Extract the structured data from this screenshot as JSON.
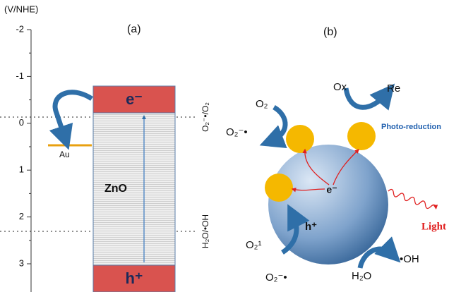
{
  "axis": {
    "unit": "(V/NHE)",
    "ticks": [
      "-2",
      "-1",
      "0",
      "1",
      "2",
      "3"
    ]
  },
  "panel_a": {
    "label": "(a)",
    "cb": "e⁻",
    "vb": "h⁺",
    "material": "ZnO",
    "metal": "Au",
    "level_1": "O₂⁻•/O₂",
    "level_2": "H₂O/•OH"
  },
  "panel_b": {
    "label": "(b)",
    "o2": "O₂",
    "o2_rad": "O₂⁻•",
    "ox": "Ox",
    "re": "Re",
    "process": "Photo-reduction",
    "electron": "e⁻",
    "hole": "h⁺",
    "light": "Light",
    "o2_singlet": "O₂¹",
    "o2_rad_2": "O₂⁻•",
    "h2o": "H₂O",
    "oh": "•OH"
  }
}
